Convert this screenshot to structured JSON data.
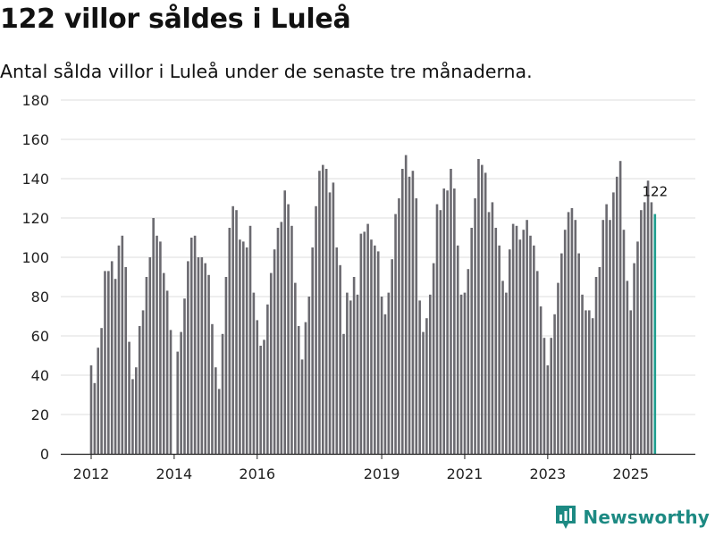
{
  "header": {
    "title": "122 villor såldes i Luleå",
    "subtitle": "Antal sålda villor i Luleå under de senaste tre månaderna."
  },
  "brand": {
    "name": "Newsworthy",
    "logo_icon": "bar-chart-pin-icon",
    "color": "#1d8a83"
  },
  "colors": {
    "bar": "#6b6a70",
    "highlight": "#1f9e8f",
    "grid": "#dddddd",
    "axis": "#222222"
  },
  "chart_data": {
    "type": "bar",
    "title": "122 villor såldes i Luleå",
    "xlabel": "",
    "ylabel": "",
    "ylim": [
      0,
      180
    ],
    "yticks": [
      0,
      20,
      40,
      60,
      80,
      100,
      120,
      140,
      160,
      180
    ],
    "grid": true,
    "start_month": "2012-01",
    "xtick_labels": [
      {
        "label": "2012",
        "month_index": 0
      },
      {
        "label": "2014",
        "month_index": 24
      },
      {
        "label": "2016",
        "month_index": 48
      },
      {
        "label": "2019",
        "month_index": 84
      },
      {
        "label": "2021",
        "month_index": 108
      },
      {
        "label": "2023",
        "month_index": 132
      },
      {
        "label": "2025",
        "month_index": 156
      }
    ],
    "values": [
      45,
      36,
      54,
      64,
      93,
      93,
      98,
      89,
      106,
      111,
      95,
      57,
      38,
      44,
      65,
      73,
      90,
      100,
      120,
      111,
      108,
      92,
      83,
      63,
      0,
      52,
      62,
      79,
      98,
      110,
      111,
      100,
      100,
      97,
      91,
      66,
      44,
      33,
      61,
      90,
      115,
      126,
      124,
      109,
      108,
      105,
      116,
      82,
      68,
      55,
      58,
      76,
      92,
      104,
      115,
      118,
      134,
      127,
      116,
      87,
      65,
      48,
      67,
      80,
      105,
      126,
      144,
      147,
      145,
      133,
      138,
      105,
      96,
      61,
      82,
      78,
      90,
      81,
      112,
      113,
      117,
      109,
      106,
      103,
      80,
      71,
      82,
      99,
      122,
      130,
      145,
      152,
      141,
      144,
      130,
      78,
      62,
      69,
      81,
      97,
      127,
      124,
      135,
      134,
      145,
      135,
      106,
      81,
      82,
      94,
      115,
      130,
      150,
      147,
      143,
      123,
      128,
      115,
      106,
      88,
      82,
      104,
      117,
      116,
      109,
      114,
      119,
      111,
      106,
      93,
      75,
      59,
      45,
      59,
      71,
      87,
      102,
      114,
      123,
      125,
      119,
      102,
      81,
      73,
      73,
      69,
      90,
      95,
      119,
      127,
      119,
      133,
      141,
      149,
      114,
      88,
      73,
      97,
      108,
      124,
      128,
      139,
      128,
      122
    ],
    "highlight_last": true,
    "last_label": "122"
  }
}
